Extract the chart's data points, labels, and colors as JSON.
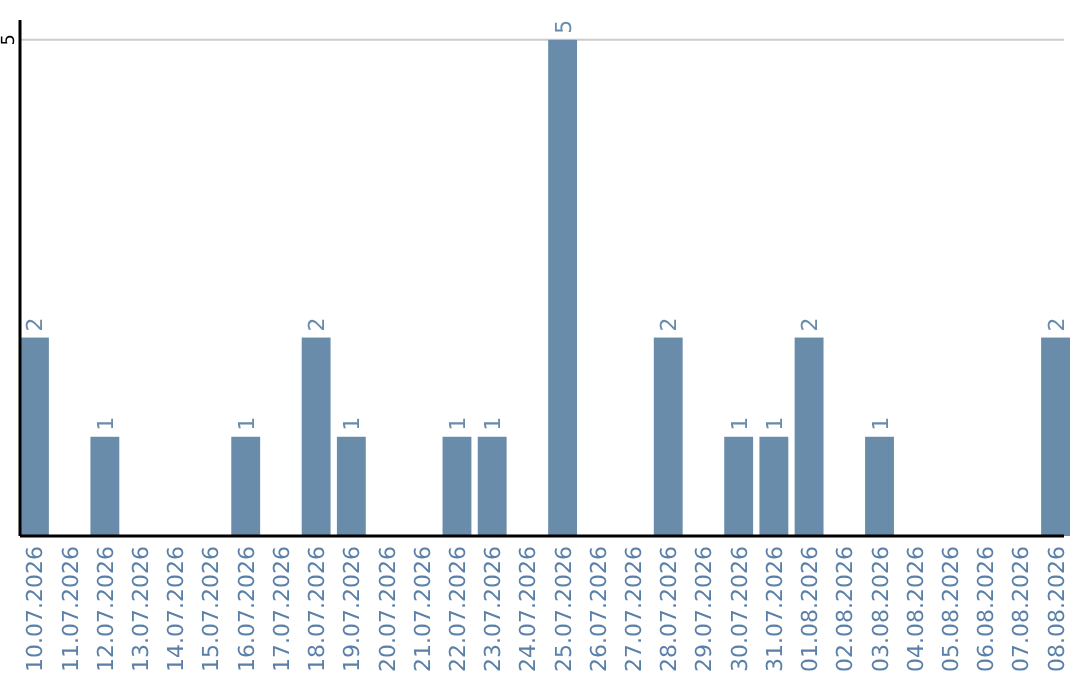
{
  "chart_data": {
    "type": "bar",
    "categories": [
      "10.07.2026",
      "11.07.2026",
      "12.07.2026",
      "13.07.2026",
      "14.07.2026",
      "15.07.2026",
      "16.07.2026",
      "17.07.2026",
      "18.07.2026",
      "19.07.2026",
      "20.07.2026",
      "21.07.2026",
      "22.07.2026",
      "23.07.2026",
      "24.07.2026",
      "25.07.2026",
      "26.07.2026",
      "27.07.2026",
      "28.07.2026",
      "29.07.2026",
      "30.07.2026",
      "31.07.2026",
      "01.08.2026",
      "02.08.2026",
      "03.08.2026",
      "04.08.2026",
      "05.08.2026",
      "06.08.2026",
      "07.08.2026",
      "08.08.2026"
    ],
    "values": [
      2,
      0,
      1,
      0,
      0,
      0,
      1,
      0,
      2,
      1,
      0,
      0,
      1,
      1,
      0,
      5,
      0,
      0,
      2,
      0,
      1,
      1,
      2,
      0,
      1,
      0,
      0,
      0,
      0,
      2
    ],
    "value_labels": [
      "2",
      null,
      "1",
      null,
      null,
      null,
      "1",
      null,
      "2",
      "1",
      null,
      null,
      "1",
      "1",
      null,
      "5",
      null,
      null,
      "2",
      null,
      "1",
      "1",
      "2",
      null,
      "1",
      null,
      null,
      null,
      null,
      "2"
    ],
    "color": "#6a8cab",
    "ylim": [
      0,
      5.2
    ],
    "yticks": [
      5
    ],
    "grid": "y"
  }
}
